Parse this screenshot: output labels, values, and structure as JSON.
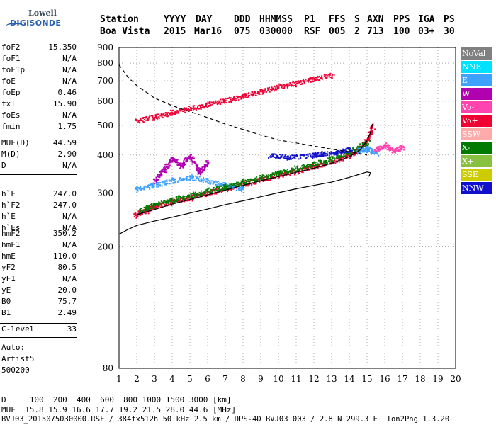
{
  "logo": {
    "line1": "Lowell",
    "line2": "DIGISONDE"
  },
  "header": {
    "labels": [
      "Station",
      "YYYY",
      "DAY",
      "DDD",
      "HHMMSS",
      "P1",
      "FFS",
      "S",
      "AXN",
      "PPS",
      "IGA",
      "PS"
    ],
    "values": [
      "Boa Vista",
      "2015",
      "Mar16",
      "075",
      "030000",
      "RSF",
      "005",
      "2",
      "713",
      "100",
      "03+",
      "30"
    ]
  },
  "params_group1": [
    {
      "name": "foF2",
      "value": "15.350"
    },
    {
      "name": "foF1",
      "value": "N/A"
    },
    {
      "name": "foF1p",
      "value": "N/A"
    },
    {
      "name": "foE",
      "value": "N/A"
    },
    {
      "name": "foEp",
      "value": "0.46"
    },
    {
      "name": "fxI",
      "value": "15.90"
    },
    {
      "name": "foEs",
      "value": "N/A"
    },
    {
      "name": "fmin",
      "value": "1.75"
    }
  ],
  "params_group2": [
    {
      "name": "MUF(D)",
      "value": "44.59"
    },
    {
      "name": "M(D)",
      "value": "2.90"
    },
    {
      "name": "D",
      "value": "N/A"
    }
  ],
  "params_group3": [
    {
      "name": "h`F",
      "value": "247.0"
    },
    {
      "name": "h`F2",
      "value": "247.0"
    },
    {
      "name": "h`E",
      "value": "N/A"
    },
    {
      "name": "h`Es",
      "value": "N/A"
    }
  ],
  "params_group4": [
    {
      "name": "hmF2",
      "value": "350.2"
    },
    {
      "name": "hmF1",
      "value": "N/A"
    },
    {
      "name": "hmE",
      "value": "110.0"
    },
    {
      "name": "yF2",
      "value": "80.5"
    },
    {
      "name": "yF1",
      "value": "N/A"
    },
    {
      "name": "yE",
      "value": "20.0"
    },
    {
      "name": "B0",
      "value": "75.7"
    },
    {
      "name": "B1",
      "value": "2.49"
    }
  ],
  "params_group5": [
    {
      "name": "C-level",
      "value": "33"
    }
  ],
  "auto": {
    "line1": "Auto:",
    "line2": "Artist5",
    "line3": "500200"
  },
  "legend": [
    {
      "label": "NoVal",
      "color": "#808080"
    },
    {
      "label": "NNE",
      "color": "#00e0ff"
    },
    {
      "label": "E",
      "color": "#3ea0ff"
    },
    {
      "label": "W",
      "color": "#b000b0"
    },
    {
      "label": "Vo-",
      "color": "#ff44b0"
    },
    {
      "label": "Vo+",
      "color": "#ee0033"
    },
    {
      "label": "SSW",
      "color": "#ffaaaa"
    },
    {
      "label": "X-",
      "color": "#007a00"
    },
    {
      "label": "X+",
      "color": "#88c040"
    },
    {
      "label": "SSE",
      "color": "#cccc00"
    },
    {
      "label": "NNW",
      "color": "#1010cc"
    }
  ],
  "footer": {
    "line1": "D     100  200  400  600  800 1000 1500 3000 [km]",
    "line2": "MUF  15.8 15.9 16.6 17.7 19.2 21.5 28.0 44.6 [MHz]",
    "line3": "BVJ03_2015075030000.RSF / 384fx512h 50 kHz 2.5 km / DPS-4D BVJ03 003 / 2.8 N 299.3 E  Ion2Png 1.3.20"
  },
  "chart_data": {
    "type": "scatter",
    "title": "",
    "xlabel": "",
    "ylabel": "",
    "xlim": [
      1,
      20
    ],
    "ylim": [
      80,
      900
    ],
    "x_ticks": [
      1,
      2,
      3,
      4,
      5,
      6,
      7,
      8,
      9,
      10,
      11,
      12,
      13,
      14,
      15,
      16,
      17,
      18,
      19,
      20
    ],
    "y_ticks": [
      80,
      200,
      300,
      400,
      500,
      600,
      700,
      800,
      900
    ],
    "y_scale": "log",
    "grid": "dotted",
    "series": [
      {
        "name": "Vo+",
        "points": [
          [
            1.9,
            255
          ],
          [
            2.5,
            265
          ],
          [
            3,
            272
          ],
          [
            4,
            282
          ],
          [
            5,
            291
          ],
          [
            6,
            301
          ],
          [
            7,
            311
          ],
          [
            8,
            322
          ],
          [
            9,
            333
          ],
          [
            10,
            345
          ],
          [
            11,
            355
          ],
          [
            12,
            368
          ],
          [
            13,
            382
          ],
          [
            14,
            400
          ],
          [
            14.5,
            418
          ],
          [
            15,
            450
          ],
          [
            15.3,
            500
          ]
        ]
      },
      {
        "name": "Vo+",
        "points": [
          [
            2,
            520
          ],
          [
            3,
            535
          ],
          [
            4,
            553
          ],
          [
            5,
            570
          ],
          [
            6,
            588
          ],
          [
            7,
            605
          ],
          [
            8,
            625
          ],
          [
            9,
            648
          ],
          [
            10,
            670
          ],
          [
            11,
            690
          ],
          [
            12,
            712
          ],
          [
            13,
            735
          ]
        ]
      },
      {
        "name": "W",
        "points": [
          [
            3,
            330
          ],
          [
            3.5,
            360
          ],
          [
            4,
            390
          ],
          [
            4.5,
            370
          ],
          [
            5,
            400
          ],
          [
            5.5,
            350
          ],
          [
            6,
            380
          ]
        ]
      },
      {
        "name": "E",
        "points": [
          [
            2,
            310
          ],
          [
            3,
            320
          ],
          [
            4,
            330
          ],
          [
            5,
            340
          ],
          [
            6,
            330
          ],
          [
            7,
            320
          ],
          [
            8,
            310
          ]
        ]
      },
      {
        "name": "X-",
        "points": [
          [
            2.2,
            265
          ],
          [
            3,
            275
          ],
          [
            4,
            287
          ],
          [
            5,
            296
          ],
          [
            6,
            306
          ],
          [
            7,
            316
          ],
          [
            8,
            327
          ],
          [
            9,
            338
          ],
          [
            10,
            350
          ],
          [
            11,
            362
          ],
          [
            12,
            375
          ],
          [
            13,
            390
          ],
          [
            14,
            410
          ],
          [
            15,
            440
          ]
        ]
      },
      {
        "name": "NNW",
        "points": [
          [
            9.5,
            400
          ],
          [
            10.5,
            395
          ],
          [
            12,
            400
          ],
          [
            12.5,
            405
          ],
          [
            13.5,
            410
          ],
          [
            14,
            420
          ]
        ]
      },
      {
        "name": "E",
        "points": [
          [
            14.5,
            415
          ],
          [
            15,
            420
          ],
          [
            15.5,
            410
          ]
        ]
      },
      {
        "name": "Vo-",
        "points": [
          [
            15.5,
            420
          ],
          [
            16,
            430
          ],
          [
            16.5,
            415
          ],
          [
            17,
            425
          ]
        ]
      }
    ],
    "lines": [
      {
        "name": "profile",
        "style": "solid",
        "points": [
          [
            1,
            220
          ],
          [
            1.5,
            228
          ],
          [
            2,
            235
          ],
          [
            3,
            243
          ],
          [
            4,
            250
          ],
          [
            5,
            258
          ],
          [
            6,
            266
          ],
          [
            7,
            275
          ],
          [
            8,
            283
          ],
          [
            9,
            292
          ],
          [
            10,
            301
          ],
          [
            11,
            310
          ],
          [
            12,
            318
          ],
          [
            13,
            326
          ],
          [
            14,
            338
          ],
          [
            14.5,
            345
          ],
          [
            15,
            352
          ],
          [
            15.2,
            350
          ],
          [
            15.1,
            340
          ]
        ]
      },
      {
        "name": "trace",
        "style": "solid",
        "points": [
          [
            2,
            255
          ],
          [
            3,
            265
          ],
          [
            4,
            276
          ],
          [
            5,
            286
          ],
          [
            6,
            296
          ],
          [
            7,
            307
          ],
          [
            8,
            318
          ],
          [
            9,
            329
          ],
          [
            10,
            340
          ],
          [
            11,
            351
          ],
          [
            12,
            362
          ],
          [
            13,
            376
          ],
          [
            14,
            395
          ],
          [
            14.6,
            415
          ],
          [
            15,
            445
          ],
          [
            15.2,
            475
          ],
          [
            15.3,
            505
          ]
        ]
      },
      {
        "name": "muf",
        "style": "dashed",
        "points": [
          [
            1,
            790
          ],
          [
            1.5,
            720
          ],
          [
            2,
            675
          ],
          [
            3,
            615
          ],
          [
            4,
            580
          ],
          [
            5,
            555
          ],
          [
            6,
            530
          ],
          [
            7,
            505
          ],
          [
            8,
            485
          ],
          [
            9,
            465
          ],
          [
            10,
            448
          ],
          [
            11,
            438
          ],
          [
            12,
            428
          ],
          [
            13,
            418
          ],
          [
            14,
            410
          ],
          [
            14.5,
            405
          ],
          [
            15,
            400
          ]
        ]
      }
    ]
  }
}
